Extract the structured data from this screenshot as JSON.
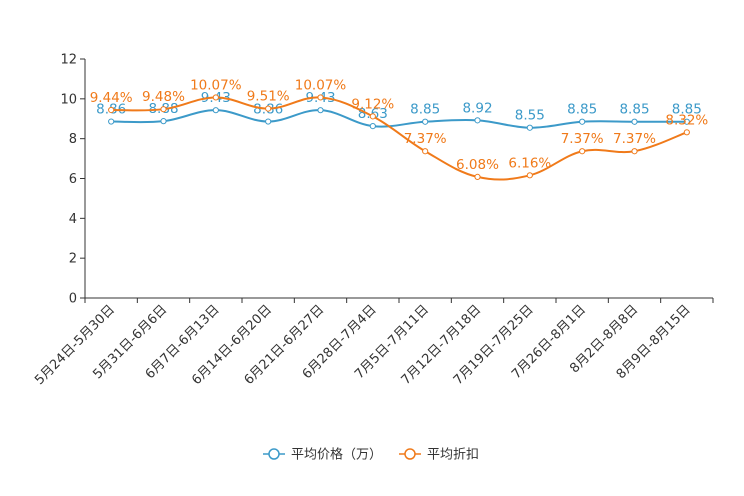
{
  "chart_data": {
    "type": "line",
    "title": "",
    "xlabel": "",
    "ylabel": "",
    "ylim": [
      0,
      12
    ],
    "yticks": [
      "0",
      "2",
      "4",
      "6",
      "8",
      "10",
      "12"
    ],
    "categories": [
      "5月24日-5月30日",
      "5月31日-6月6日",
      "6月7日-6月13日",
      "6月14日-6月20日",
      "6月21日-6月27日",
      "6月28日-7月4日",
      "7月5日-7月11日",
      "7月12日-7月18日",
      "7月19日-7月25日",
      "7月26日-8月1日",
      "8月2日-8月8日",
      "8月9日-8月15日"
    ],
    "series": [
      {
        "name": "平均价格（万）",
        "color": "#3c9ac9",
        "values": [
          8.86,
          8.88,
          9.43,
          8.86,
          9.43,
          8.63,
          8.85,
          8.92,
          8.55,
          8.85,
          8.85,
          8.85
        ],
        "labels": [
          "8.86",
          "8.88",
          "9.43",
          "8.86",
          "9.43",
          "8.63",
          "8.85",
          "8.92",
          "8.55",
          "8.85",
          "8.85",
          "8.85"
        ]
      },
      {
        "name": "平均折扣",
        "color": "#f07a1a",
        "values": [
          9.44,
          9.48,
          10.07,
          9.51,
          10.07,
          9.12,
          7.37,
          6.08,
          6.16,
          7.37,
          7.37,
          8.32
        ],
        "labels": [
          "9.44%",
          "9.48%",
          "10.07%",
          "9.51%",
          "10.07%",
          "9.12%",
          "7.37%",
          "6.08%",
          "6.16%",
          "7.37%",
          "7.37%",
          "8.32%"
        ]
      }
    ],
    "legend": "bottom-center",
    "grid": false
  }
}
